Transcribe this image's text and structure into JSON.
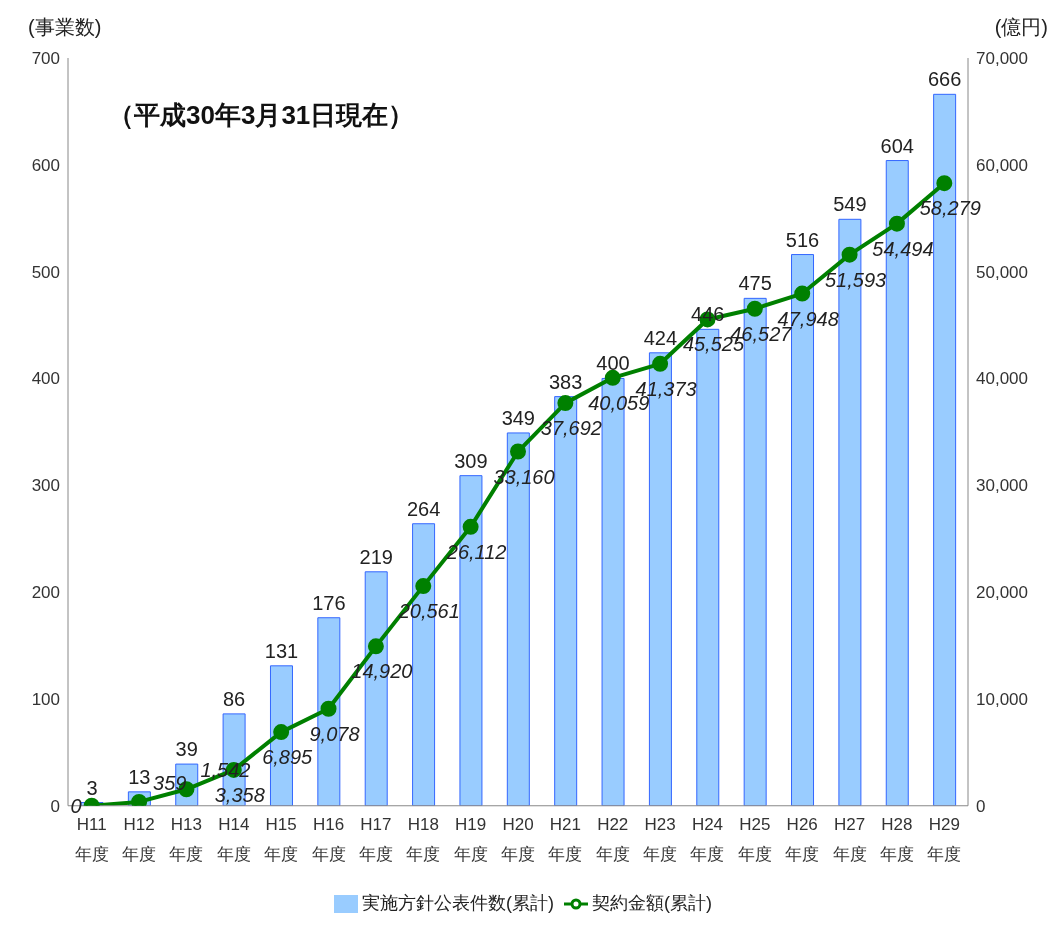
{
  "chart_data": {
    "type": "bar",
    "ylabel": "(事業数)",
    "y2label": "(億円)",
    "annotations": [
      "（平成30年3月31日現在）"
    ],
    "categories": [
      "H11\n年度",
      "H12\n年度",
      "H13\n年度",
      "H14\n年度",
      "H15\n年度",
      "H16\n年度",
      "H17\n年度",
      "H18\n年度",
      "H19\n年度",
      "H20\n年度",
      "H21\n年度",
      "H22\n年度",
      "H23\n年度",
      "H24\n年度",
      "H25\n年度",
      "H26\n年度",
      "H27\n年度",
      "H28\n年度",
      "H29\n年度"
    ],
    "series": [
      {
        "name": "実施方針公表件数(累計)",
        "color": "#99ccff",
        "values": [
          3,
          13,
          39,
          86,
          131,
          176,
          219,
          264,
          309,
          349,
          383,
          400,
          424,
          446,
          475,
          516,
          549,
          604,
          666
        ],
        "value_labels": [
          "3",
          "13",
          "39",
          "86",
          "131",
          "176",
          "219",
          "264",
          "309",
          "349",
          "383",
          "400",
          "424",
          "446",
          "475",
          "516",
          "549",
          "604",
          "666"
        ]
      },
      {
        "name": "契約金額(累計)",
        "type": "line",
        "axis": "y2",
        "color": "#008000",
        "values": [
          0,
          359,
          1542,
          3358,
          6895,
          9078,
          14920,
          20561,
          26112,
          33160,
          37692,
          40059,
          41373,
          45525,
          46527,
          47948,
          51593,
          54494,
          58279
        ],
        "value_labels": [
          "0",
          "359",
          "1,542",
          "3,358",
          "6,895",
          "9,078",
          "14,920",
          "20,561",
          "26,112",
          "33,160",
          "37,692",
          "40,059",
          "41,373",
          "45,525",
          "46,527",
          "47,948",
          "51,593",
          "54,494",
          "58,279"
        ]
      }
    ],
    "ylim": [
      0,
      700
    ],
    "yticks": [
      0,
      100,
      200,
      300,
      400,
      500,
      600,
      700
    ],
    "y2lim": [
      0,
      70000
    ],
    "y2ticks": [
      0,
      {
        "value": 10000,
        "label": "10,000"
      },
      {
        "value": 20000,
        "label": "20,000"
      },
      {
        "value": 30000,
        "label": "30,000"
      },
      {
        "value": 40000,
        "label": "40,000"
      },
      {
        "value": 50000,
        "label": "50,000"
      },
      {
        "value": 60000,
        "label": "60,000"
      },
      {
        "value": 70000,
        "label": "70,000"
      }
    ],
    "grid": false,
    "legend": "bottom",
    "marker": "circle",
    "line_style": "solid"
  }
}
